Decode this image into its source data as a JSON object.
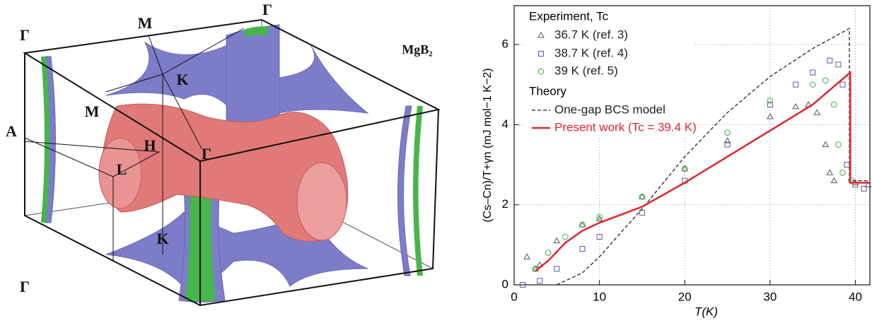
{
  "diagram": {
    "title": "MgB₂",
    "labels": [
      "Γ",
      "M",
      "Γ",
      "K",
      "M",
      "A",
      "H",
      "L",
      "Γ",
      "Γ",
      "K"
    ]
  },
  "chart_data": {
    "type": "line",
    "xlabel": "T(K)",
    "ylabel": "(Cs–Cn)/T+γn (mJ mol−1 K−2)",
    "legend_title": "Experiment, Tc",
    "legend_subtitle": "Theory",
    "xlim": [
      0,
      41.7
    ],
    "ylim": [
      0,
      6.97
    ],
    "xticks": [
      0,
      10,
      20,
      30,
      40
    ],
    "yticks": [
      0,
      2,
      4,
      6
    ],
    "grid": true,
    "series": [
      {
        "name": "36.7 K (ref. 3)",
        "color": "#555555",
        "marker": "triangle",
        "x": [
          1.5,
          2.5,
          3,
          5,
          8,
          10,
          15,
          20,
          25,
          30,
          33,
          34.5,
          35.5,
          36.5,
          37,
          37.5,
          40,
          41.5
        ],
        "values": [
          0.7,
          0.4,
          0.5,
          1.1,
          1.5,
          1.65,
          2.2,
          2.9,
          3.6,
          4.2,
          4.45,
          4.5,
          4.3,
          3.5,
          2.8,
          2.6,
          2.55,
          2.5
        ]
      },
      {
        "name": "38.7 K (ref. 4)",
        "color": "#5a5aa8",
        "marker": "square",
        "x": [
          1,
          3,
          5,
          8,
          10,
          15,
          20,
          25,
          30,
          33,
          35,
          37,
          38,
          38.5,
          39,
          40,
          41
        ],
        "values": [
          0,
          0.1,
          0.4,
          0.9,
          1.2,
          1.8,
          2.6,
          3.5,
          4.5,
          5,
          5.3,
          5.6,
          5.5,
          5,
          3,
          2.5,
          2.4
        ]
      },
      {
        "name": "39 K (ref. 5)",
        "color": "#3cb043",
        "marker": "circle",
        "x": [
          2.5,
          4,
          6,
          8,
          10,
          15,
          20,
          25,
          30,
          35,
          36.5,
          37.5,
          38,
          38.5,
          39.5
        ],
        "values": [
          0.4,
          0.8,
          1.2,
          1.5,
          1.7,
          2.2,
          2.9,
          3.8,
          4.6,
          5,
          5.1,
          4.5,
          3.5,
          2.8,
          2.6
        ]
      },
      {
        "name": "One-gap BCS model",
        "color": "#222222",
        "dash": true,
        "x": [
          5,
          8,
          10,
          15,
          20,
          25,
          30,
          35,
          39.3,
          39.3,
          41.7
        ],
        "values": [
          0,
          0.3,
          0.7,
          1.9,
          3.2,
          4.3,
          5.2,
          5.9,
          6.4,
          2.6,
          2.6
        ]
      },
      {
        "name": "Present work (Tc = 39.4 K)",
        "color": "#e0262b",
        "dash": false,
        "x": [
          2.5,
          4,
          6,
          8,
          10,
          15,
          20,
          25,
          30,
          35,
          39.4,
          39.4,
          41.7
        ],
        "values": [
          0.35,
          0.6,
          1.05,
          1.35,
          1.55,
          1.95,
          2.55,
          3.2,
          3.85,
          4.5,
          5.3,
          2.55,
          2.55
        ]
      }
    ]
  }
}
